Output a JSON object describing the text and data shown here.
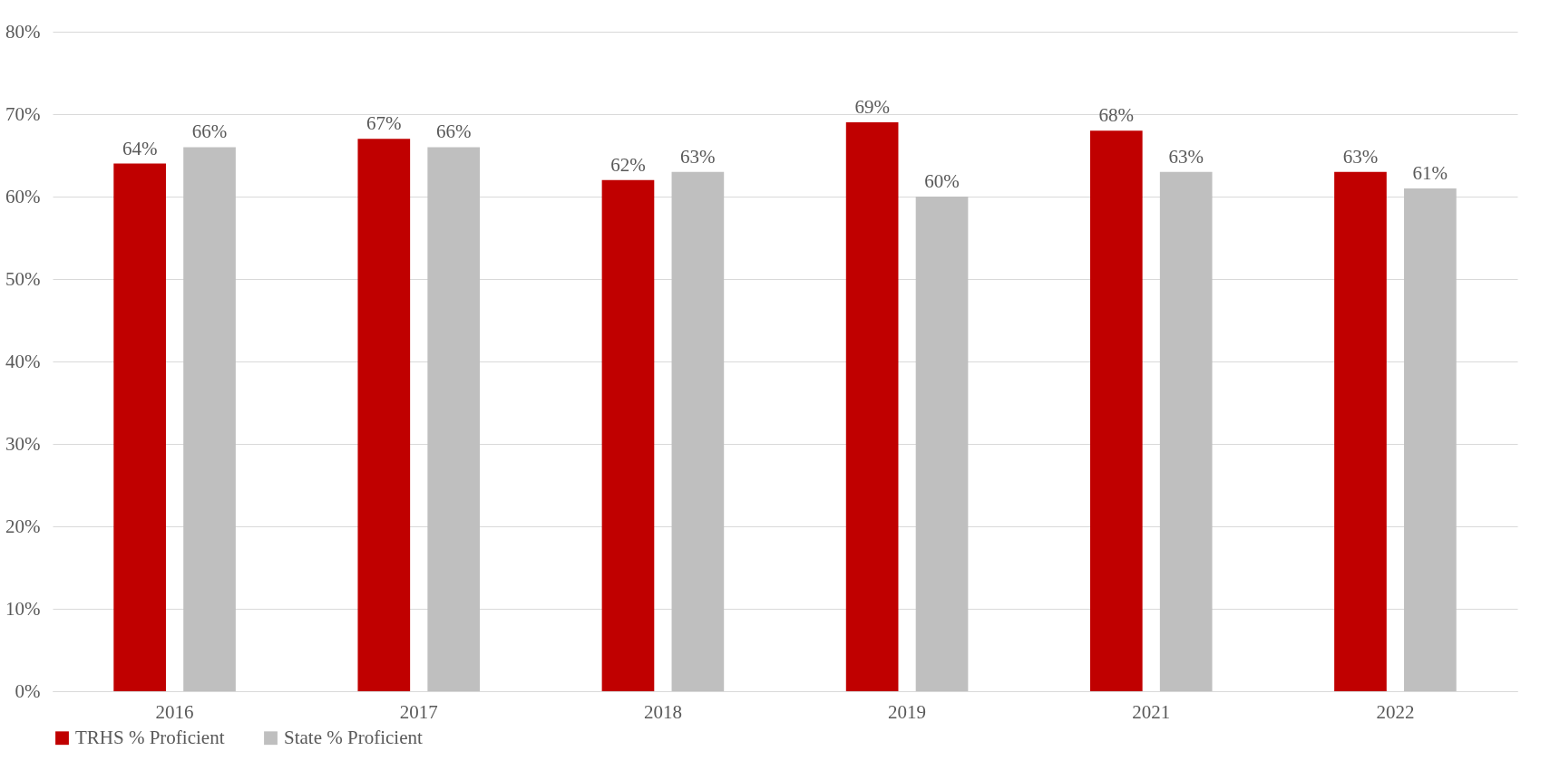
{
  "chart_data": {
    "type": "bar",
    "categories": [
      "2016",
      "2017",
      "2018",
      "2019",
      "2021",
      "2022"
    ],
    "series": [
      {
        "name": "TRHS % Proficient",
        "color": "#c00000",
        "values": [
          64,
          67,
          62,
          69,
          68,
          63
        ],
        "value_labels": [
          "64%",
          "67%",
          "62%",
          "69%",
          "68%",
          "63%"
        ]
      },
      {
        "name": "State % Proficient",
        "color": "#bfbfbf",
        "values": [
          66,
          66,
          63,
          60,
          63,
          61
        ],
        "value_labels": [
          "66%",
          "66%",
          "63%",
          "60%",
          "63%",
          "61%"
        ]
      }
    ],
    "ylim": [
      0,
      80
    ],
    "yticks": [
      {
        "value": 0,
        "label": "0%"
      },
      {
        "value": 10,
        "label": "10%"
      },
      {
        "value": 20,
        "label": "20%"
      },
      {
        "value": 30,
        "label": "30%"
      },
      {
        "value": 40,
        "label": "40%"
      },
      {
        "value": 50,
        "label": "50%"
      },
      {
        "value": 60,
        "label": "60%"
      },
      {
        "value": 70,
        "label": "70%"
      },
      {
        "value": 80,
        "label": "80%"
      }
    ],
    "grid": "y",
    "legend": "bottom"
  }
}
